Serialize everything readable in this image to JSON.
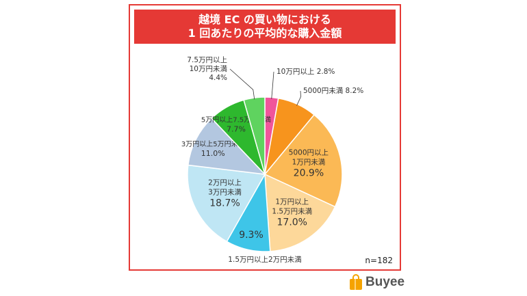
{
  "title": {
    "line1": "越境 EC の買い物における",
    "line2": "1 回あたりの平均的な購入金額"
  },
  "sample_size": "n=182",
  "brand": {
    "name": "Buyee",
    "icon": "shopping-bag-icon",
    "color": "#f5a300"
  },
  "colors": {
    "frame": "#e53935",
    "title_bg": "#e53935",
    "title_text": "#ffffff"
  },
  "chart_data": {
    "type": "pie",
    "title": "越境 EC の買い物における 1 回あたりの平均的な購入金額",
    "n": 182,
    "slices": [
      {
        "label": "10万円以上",
        "value": 2.8,
        "display": "2.8%",
        "color": "#f0559b"
      },
      {
        "label": "5000円未満",
        "value": 8.2,
        "display": "8.2%",
        "color": "#f7941d"
      },
      {
        "label": "5000円以上 1万円未満",
        "value": 20.9,
        "display": "20.9%",
        "color": "#fbb955"
      },
      {
        "label": "1万円以上 1.5万円未満",
        "value": 17.0,
        "display": "17.0%",
        "color": "#fdd89a"
      },
      {
        "label": "1.5万円以上2万円未満",
        "value": 9.3,
        "display": "9.3%",
        "color": "#3ec5e8"
      },
      {
        "label": "2万円以上 3万円未満",
        "value": 18.7,
        "display": "18.7%",
        "color": "#bfe6f4"
      },
      {
        "label": "3万円以上5万円未満",
        "value": 11.0,
        "display": "11.0%",
        "color": "#b3c7e0"
      },
      {
        "label": "5万円以上7.5万円未満",
        "value": 7.7,
        "display": "7.7%",
        "color": "#2eb82e"
      },
      {
        "label": "7.5万円以上 10万円未満",
        "value": 4.4,
        "display": "4.4%",
        "color": "#5fd35f"
      }
    ]
  }
}
